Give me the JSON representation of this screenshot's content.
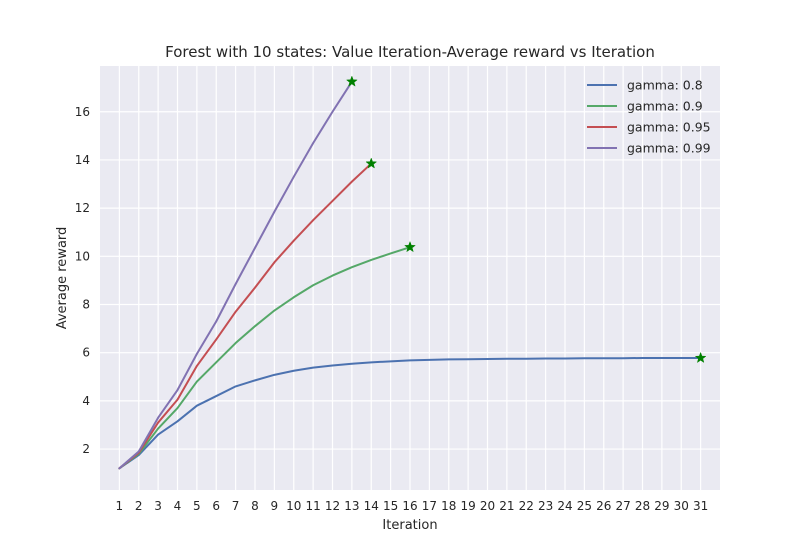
{
  "chart_data": {
    "type": "line",
    "title": "Forest with 10 states: Value Iteration-Average reward vs Iteration",
    "xlabel": "Iteration",
    "ylabel": "Average reward",
    "xlim": [
      0,
      32
    ],
    "ylim": [
      0.3,
      17.9
    ],
    "xticks": [
      1,
      2,
      3,
      4,
      5,
      6,
      7,
      8,
      9,
      10,
      11,
      12,
      13,
      14,
      15,
      16,
      17,
      18,
      19,
      20,
      21,
      22,
      23,
      24,
      25,
      26,
      27,
      28,
      29,
      30,
      31
    ],
    "yticks": [
      2,
      4,
      6,
      8,
      10,
      12,
      14,
      16
    ],
    "grid": true,
    "background": "#eaeaf2",
    "legend_position": "top-right",
    "end_marker": {
      "shape": "star",
      "color": "#008000"
    },
    "series": [
      {
        "name": "gamma: 0.8",
        "color": "#4c72b0",
        "x": [
          1,
          2,
          3,
          4,
          5,
          6,
          7,
          8,
          9,
          10,
          11,
          12,
          13,
          14,
          15,
          16,
          17,
          18,
          19,
          20,
          21,
          22,
          23,
          24,
          25,
          26,
          27,
          28,
          29,
          30,
          31
        ],
        "values": [
          1.2,
          1.75,
          2.6,
          3.15,
          3.8,
          4.2,
          4.6,
          4.85,
          5.08,
          5.25,
          5.38,
          5.47,
          5.54,
          5.6,
          5.64,
          5.68,
          5.7,
          5.72,
          5.73,
          5.74,
          5.75,
          5.75,
          5.76,
          5.76,
          5.77,
          5.77,
          5.77,
          5.78,
          5.78,
          5.78,
          5.78
        ]
      },
      {
        "name": "gamma: 0.9",
        "color": "#55a868",
        "x": [
          1,
          2,
          3,
          4,
          5,
          6,
          7,
          8,
          9,
          10,
          11,
          12,
          13,
          14,
          15,
          16
        ],
        "values": [
          1.2,
          1.8,
          2.85,
          3.7,
          4.8,
          5.6,
          6.4,
          7.1,
          7.75,
          8.3,
          8.8,
          9.2,
          9.55,
          9.85,
          10.12,
          10.38
        ]
      },
      {
        "name": "gamma: 0.95",
        "color": "#c44e52",
        "x": [
          1,
          2,
          3,
          4,
          5,
          6,
          7,
          8,
          9,
          10,
          11,
          12,
          13,
          14
        ],
        "values": [
          1.2,
          1.85,
          3.1,
          4.05,
          5.45,
          6.55,
          7.7,
          8.7,
          9.75,
          10.65,
          11.5,
          12.3,
          13.1,
          13.85
        ]
      },
      {
        "name": "gamma: 0.99",
        "color": "#8172b2",
        "x": [
          1,
          2,
          3,
          4,
          5,
          6,
          7,
          8,
          9,
          10,
          11,
          12,
          13
        ],
        "values": [
          1.2,
          1.9,
          3.3,
          4.45,
          5.95,
          7.3,
          8.85,
          10.35,
          11.85,
          13.3,
          14.7,
          16.0,
          17.25
        ]
      }
    ]
  }
}
